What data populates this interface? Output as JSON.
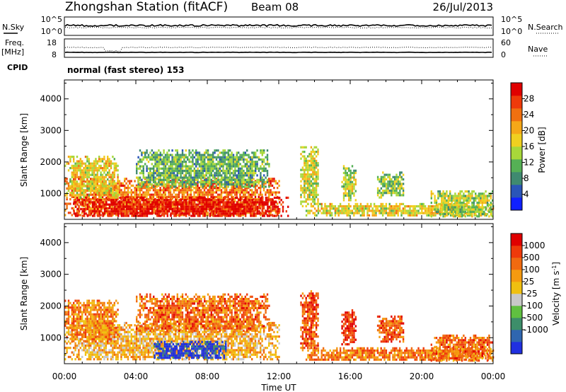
{
  "header": {
    "station": "Zhongshan Station (fitACF)",
    "beam": "Beam 08",
    "date": "26/Jul/2013"
  },
  "top_panels": {
    "nsky_label": "N.Sky",
    "nsky_ticks": [
      "10^5",
      "10^0"
    ],
    "nsearch_label": "N.Search",
    "nsearch_ticks": [
      "10^5",
      "10^0"
    ],
    "freq_label_1": "Freq.",
    "freq_label_2": "[MHz]",
    "freq_ticks": [
      "18",
      "8"
    ],
    "nave_label": "Nave",
    "nave_ticks": [
      "60",
      "0"
    ],
    "cpid_label": "CPID",
    "cpid_text": "normal (fast stereo) 153"
  },
  "chart_data": [
    {
      "type": "heatmap",
      "quantity": "power",
      "xlabel": "Time UT",
      "ylabel": "Slant Range [km]",
      "x_ticks": [
        "00:00",
        "04:00",
        "08:00",
        "12:00",
        "16:00",
        "20:00",
        "00:00"
      ],
      "x_range_hours": [
        0,
        24
      ],
      "y_ticks": [
        "1000",
        "2000",
        "3000",
        "4000"
      ],
      "y_range_km": [
        180,
        4600
      ],
      "colorbar": {
        "label": "Power [dB]",
        "ticks": [
          "4",
          "8",
          "12",
          "16",
          "20",
          "24",
          "28"
        ],
        "range": [
          0,
          32
        ],
        "colors": [
          "#1020ff",
          "#2a55b8",
          "#3f8a70",
          "#55b055",
          "#a8d83a",
          "#f0d020",
          "#f5a818",
          "#f07010",
          "#ef3a0a",
          "#e00000"
        ]
      },
      "echo_regions": [
        {
          "t0": 0.0,
          "t1": 12.0,
          "r0": 300,
          "r1": 1500,
          "level": 0.75
        },
        {
          "t0": 0.5,
          "t1": 12.5,
          "r0": 300,
          "r1": 900,
          "level": 0.95
        },
        {
          "t0": 0.0,
          "t1": 3.0,
          "r0": 900,
          "r1": 2200,
          "level": 0.55
        },
        {
          "t0": 4.0,
          "t1": 11.5,
          "r0": 1200,
          "r1": 2400,
          "level": 0.35
        },
        {
          "t0": 13.2,
          "t1": 14.2,
          "r0": 600,
          "r1": 2500,
          "level": 0.5
        },
        {
          "t0": 13.5,
          "t1": 24.0,
          "r0": 300,
          "r1": 700,
          "level": 0.55
        },
        {
          "t0": 15.5,
          "t1": 16.3,
          "r0": 800,
          "r1": 1900,
          "level": 0.45
        },
        {
          "t0": 17.5,
          "t1": 19.0,
          "r0": 900,
          "r1": 1700,
          "level": 0.4
        },
        {
          "t0": 20.5,
          "t1": 24.0,
          "r0": 300,
          "r1": 1100,
          "level": 0.45
        }
      ]
    },
    {
      "type": "heatmap",
      "quantity": "velocity",
      "xlabel": "Time UT",
      "ylabel": "Slant Range [km]",
      "x_ticks": [
        "00:00",
        "04:00",
        "08:00",
        "12:00",
        "16:00",
        "20:00",
        "00:00"
      ],
      "x_range_hours": [
        0,
        24
      ],
      "y_ticks": [
        "1000",
        "2000",
        "3000",
        "4000"
      ],
      "y_range_km": [
        180,
        4600
      ],
      "colorbar": {
        "label": "Velocity [m s^-1]",
        "ticks": [
          "1000",
          "500",
          "100",
          "25",
          "-25",
          "-100",
          "-500",
          "-1000"
        ],
        "colors": [
          "#2030e0",
          "#2f66b0",
          "#3d8e6a",
          "#60c040",
          "#c8c8c8",
          "#f0c010",
          "#f59a10",
          "#f06a10",
          "#ef3a0a",
          "#e00000"
        ]
      },
      "echo_regions": [
        {
          "t0": 0.0,
          "t1": 12.0,
          "r0": 300,
          "r1": 1500,
          "level": 0.6
        },
        {
          "t0": 5.0,
          "t1": 9.0,
          "r0": 350,
          "r1": 900,
          "level": 0.05
        },
        {
          "t0": 0.0,
          "t1": 3.0,
          "r0": 900,
          "r1": 2200,
          "level": 0.7
        },
        {
          "t0": 4.0,
          "t1": 11.5,
          "r0": 1200,
          "r1": 2400,
          "level": 0.75
        },
        {
          "t0": 13.2,
          "t1": 14.2,
          "r0": 600,
          "r1": 2500,
          "level": 0.8
        },
        {
          "t0": 13.5,
          "t1": 24.0,
          "r0": 300,
          "r1": 700,
          "level": 0.72
        },
        {
          "t0": 15.5,
          "t1": 16.3,
          "r0": 800,
          "r1": 1900,
          "level": 0.88
        },
        {
          "t0": 17.5,
          "t1": 19.0,
          "r0": 900,
          "r1": 1700,
          "level": 0.8
        },
        {
          "t0": 20.5,
          "t1": 24.0,
          "r0": 300,
          "r1": 1100,
          "level": 0.75
        }
      ]
    }
  ]
}
